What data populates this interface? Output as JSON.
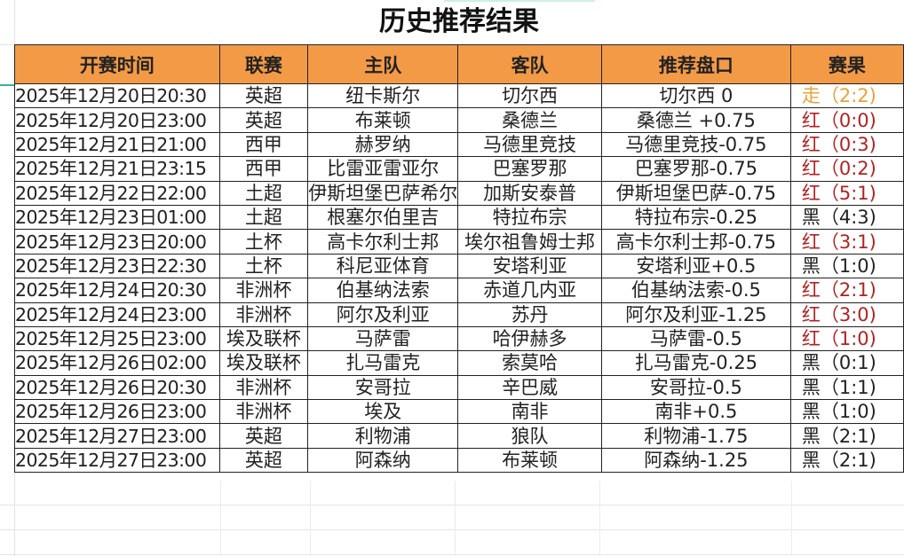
{
  "title": "历史推荐结果",
  "colors": {
    "header_bg": "#f39a47",
    "win": "#b22222",
    "draw": "#e8a23a",
    "loss": "#222222"
  },
  "columns": [
    "开赛时间",
    "联赛",
    "主队",
    "客队",
    "推荐盘口",
    "赛果"
  ],
  "rows": [
    {
      "time": "2025年12月20日20:30",
      "league": "英超",
      "home": "纽卡斯尔",
      "away": "切尔西",
      "pick": "切尔西 0",
      "result": "走（2:2)",
      "status": "draw"
    },
    {
      "time": "2025年12月20日23:00",
      "league": "英超",
      "home": "布莱顿",
      "away": "桑德兰",
      "pick": "桑德兰 +0.75",
      "result": "红（0:0)",
      "status": "win"
    },
    {
      "time": "2025年12月21日21:00",
      "league": "西甲",
      "home": "赫罗纳",
      "away": "马德里竞技",
      "pick": "马德里竞技-0.75",
      "result": "红（0:3)",
      "status": "win"
    },
    {
      "time": "2025年12月21日23:15",
      "league": "西甲",
      "home": "比雷亚雷亚尔",
      "away": "巴塞罗那",
      "pick": "巴塞罗那-0.75",
      "result": "红（0:2)",
      "status": "win"
    },
    {
      "time": "2025年12月22日22:00",
      "league": "土超",
      "home": "伊斯坦堡巴萨希尔",
      "away": "加斯安泰普",
      "pick": "伊斯坦堡巴萨-0.75",
      "result": "红（5:1)",
      "status": "win"
    },
    {
      "time": "2025年12月23日01:00",
      "league": "土超",
      "home": "根塞尔伯里吉",
      "away": "特拉布宗",
      "pick": "特拉布宗-0.25",
      "result": "黑（4:3)",
      "status": "loss"
    },
    {
      "time": "2025年12月23日20:00",
      "league": "土杯",
      "home": "高卡尔利士邦",
      "away": "埃尔祖鲁姆士邦",
      "pick": "高卡尔利士邦-0.75",
      "result": "红（3:1)",
      "status": "win"
    },
    {
      "time": "2025年12月23日22:30",
      "league": "土杯",
      "home": "科尼亚体育",
      "away": "安塔利亚",
      "pick": "安塔利亚+0.5",
      "result": "黑（1:0)",
      "status": "loss"
    },
    {
      "time": "2025年12月24日20:30",
      "league": "非洲杯",
      "home": "伯基纳法索",
      "away": "赤道几内亚",
      "pick": "伯基纳法索-0.5",
      "result": "红（2:1)",
      "status": "win"
    },
    {
      "time": "2025年12月24日23:00",
      "league": "非洲杯",
      "home": "阿尔及利亚",
      "away": "苏丹",
      "pick": "阿尔及利亚-1.25",
      "result": "红（3:0)",
      "status": "win"
    },
    {
      "time": "2025年12月25日23:00",
      "league": "埃及联杯",
      "home": "马萨雷",
      "away": "哈伊赫多",
      "pick": "马萨雷-0.5",
      "result": "红（1:0)",
      "status": "win"
    },
    {
      "time": "2025年12月26日02:00",
      "league": "埃及联杯",
      "home": "扎马雷克",
      "away": "索莫哈",
      "pick": "扎马雷克-0.25",
      "result": "黑（0:1)",
      "status": "loss"
    },
    {
      "time": "2025年12月26日20:30",
      "league": "非洲杯",
      "home": "安哥拉",
      "away": "辛巴威",
      "pick": "安哥拉-0.5",
      "result": "黑（1:1)",
      "status": "loss"
    },
    {
      "time": "2025年12月26日23:00",
      "league": "非洲杯",
      "home": "埃及",
      "away": "南非",
      "pick": "南非+0.5",
      "result": "黑（1:0)",
      "status": "loss"
    },
    {
      "time": "2025年12月27日23:00",
      "league": "英超",
      "home": "利物浦",
      "away": "狼队",
      "pick": "利物浦-1.75",
      "result": "黑（2:1)",
      "status": "loss"
    },
    {
      "time": "2025年12月27日23:00",
      "league": "英超",
      "home": "阿森纳",
      "away": "布莱顿",
      "pick": "阿森纳-1.25",
      "result": "黑（2:1)",
      "status": "loss"
    }
  ]
}
